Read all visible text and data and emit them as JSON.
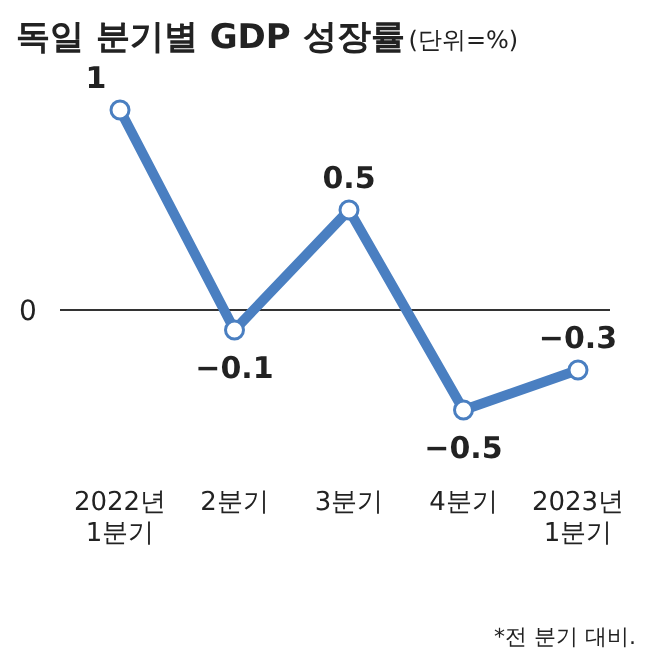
{
  "chart_data": {
    "type": "line",
    "title": "독일 분기별 GDP 성장률",
    "subtitle": "(단위=%)",
    "categories": [
      "2022년\n1분기",
      "2분기",
      "3분기",
      "4분기",
      "2023년\n1분기"
    ],
    "values": [
      1,
      -0.1,
      0.5,
      -0.5,
      -0.3
    ],
    "color": "#4a7fc1",
    "marker": "circle",
    "data_labels": true,
    "ref_lines": [
      {
        "axis": "y",
        "value": 0,
        "label": "0",
        "color": "#333333"
      }
    ],
    "annotations": [
      "*전 분기 대비."
    ]
  }
}
